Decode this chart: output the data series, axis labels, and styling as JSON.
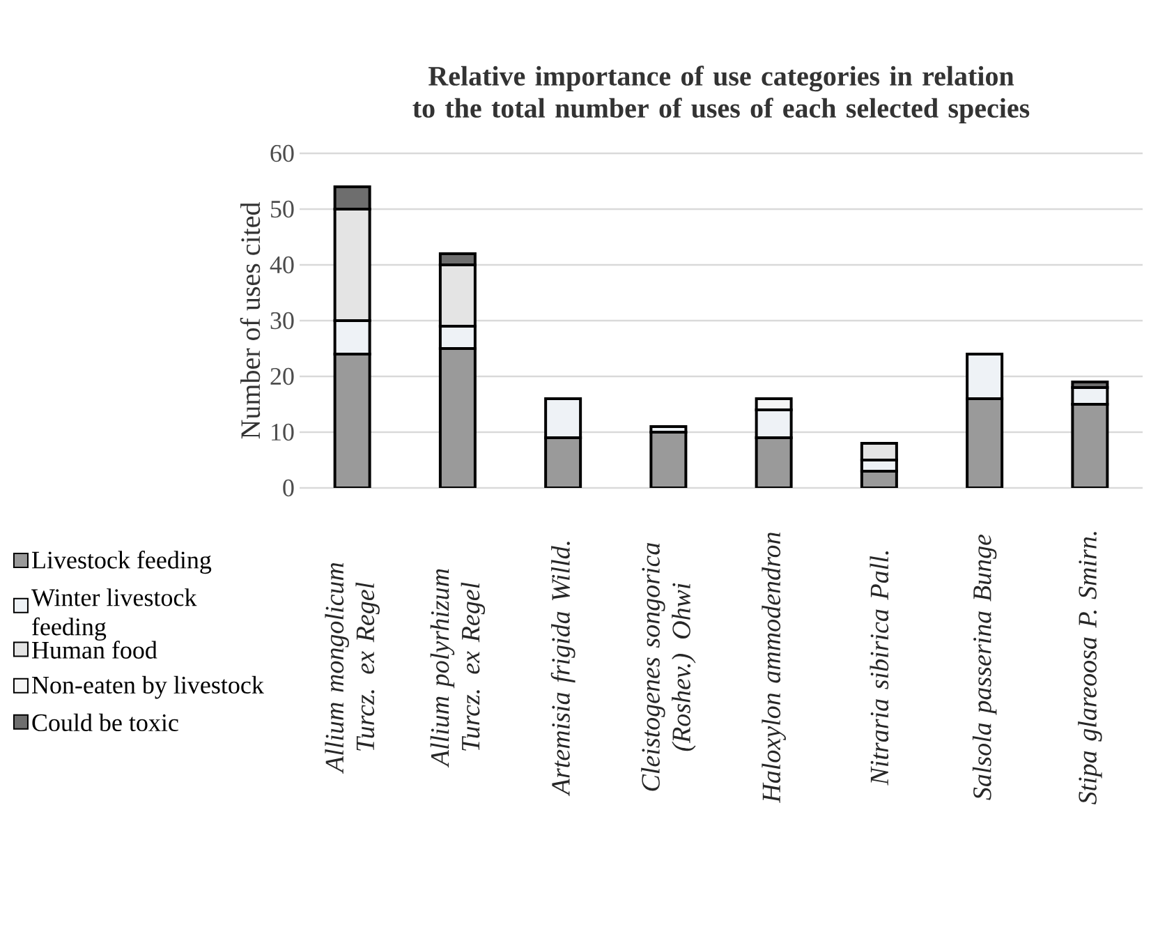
{
  "chart_data": {
    "type": "bar",
    "stacked": true,
    "title": "Relative importance of use categories in relation to the total number of uses of each selected species",
    "ylabel": "Number of uses cited",
    "categories": [
      "Allium mongolicum Turcz. ex Regel",
      "Allium polyrhizum Turcz. ex Regel",
      "Artemisia frigida Willd.",
      "Cleistogenes songorica (Roshev.) Ohwi",
      "Haloxylon ammodendron",
      "Nitraria sibirica Pall.",
      "Salsola passerina Bunge",
      "Stipa glareoosa P. Smirn."
    ],
    "series": [
      {
        "name": "Livestock feeding",
        "color": "#9a9a9a",
        "values": [
          24,
          25,
          9,
          10,
          9,
          3,
          16,
          15
        ]
      },
      {
        "name": "Winter livestock feeding",
        "color": "#eef2f6",
        "values": [
          6,
          4,
          7,
          1,
          5,
          2,
          8,
          3
        ]
      },
      {
        "name": "Human food",
        "color": "#e4e4e4",
        "values": [
          20,
          11,
          0,
          0,
          0,
          3,
          0,
          0
        ]
      },
      {
        "name": "Non-eaten by livestock",
        "color": "#f6f6f6",
        "values": [
          0,
          0,
          0,
          0,
          2,
          0,
          0,
          0
        ]
      },
      {
        "name": "Could be toxic",
        "color": "#6e6e6e",
        "values": [
          4,
          2,
          0,
          0,
          0,
          0,
          0,
          1
        ]
      }
    ],
    "ylim": [
      0,
      60
    ],
    "yticks": [
      0,
      10,
      20,
      30,
      40,
      50,
      60
    ],
    "grid": "y",
    "legend": "bottom left"
  }
}
